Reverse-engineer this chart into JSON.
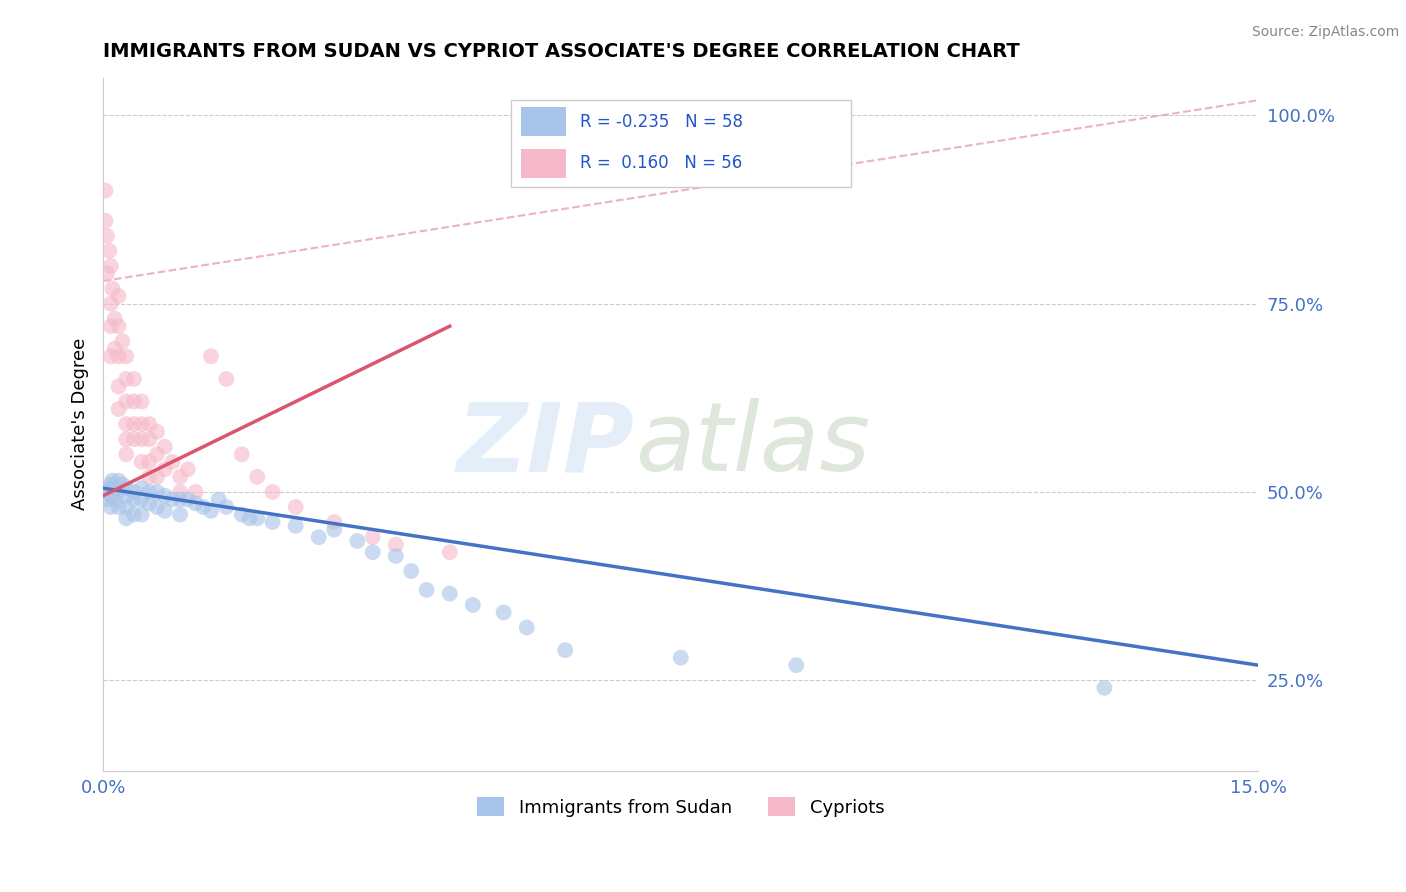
{
  "title": "IMMIGRANTS FROM SUDAN VS CYPRIOT ASSOCIATE'S DEGREE CORRELATION CHART",
  "source_text": "Source: ZipAtlas.com",
  "ylabel": "Associate's Degree",
  "xlim": [
    0.0,
    0.15
  ],
  "ylim": [
    0.13,
    1.05
  ],
  "ytick_values": [
    0.25,
    0.5,
    0.75,
    1.0
  ],
  "xtick_values": [
    0.0,
    0.15
  ],
  "blue_color": "#a8c4e8",
  "pink_color": "#f5b8c8",
  "blue_line_color": "#4472c4",
  "pink_line_color": "#d9566e",
  "diag_color": "#d9a0a8",
  "legend_R_blue": "R = -0.235",
  "legend_N_blue": "N = 58",
  "legend_R_pink": "R =  0.160",
  "legend_N_pink": "N = 56",
  "blue_scatter_x": [
    0.0005,
    0.0005,
    0.0008,
    0.001,
    0.001,
    0.001,
    0.0012,
    0.0015,
    0.0015,
    0.002,
    0.002,
    0.002,
    0.0025,
    0.003,
    0.003,
    0.003,
    0.003,
    0.004,
    0.004,
    0.004,
    0.005,
    0.005,
    0.005,
    0.006,
    0.006,
    0.007,
    0.007,
    0.008,
    0.008,
    0.009,
    0.01,
    0.01,
    0.011,
    0.012,
    0.013,
    0.014,
    0.015,
    0.016,
    0.018,
    0.019,
    0.02,
    0.022,
    0.025,
    0.028,
    0.03,
    0.033,
    0.035,
    0.038,
    0.04,
    0.042,
    0.045,
    0.048,
    0.052,
    0.055,
    0.06,
    0.075,
    0.09,
    0.13
  ],
  "blue_scatter_y": [
    0.5,
    0.49,
    0.505,
    0.51,
    0.495,
    0.48,
    0.515,
    0.505,
    0.49,
    0.515,
    0.5,
    0.48,
    0.51,
    0.505,
    0.495,
    0.48,
    0.465,
    0.5,
    0.49,
    0.47,
    0.505,
    0.49,
    0.47,
    0.5,
    0.485,
    0.5,
    0.48,
    0.495,
    0.475,
    0.49,
    0.49,
    0.47,
    0.49,
    0.485,
    0.48,
    0.475,
    0.49,
    0.48,
    0.47,
    0.465,
    0.465,
    0.46,
    0.455,
    0.44,
    0.45,
    0.435,
    0.42,
    0.415,
    0.395,
    0.37,
    0.365,
    0.35,
    0.34,
    0.32,
    0.29,
    0.28,
    0.27,
    0.24
  ],
  "pink_scatter_x": [
    0.0003,
    0.0003,
    0.0005,
    0.0005,
    0.0008,
    0.001,
    0.001,
    0.001,
    0.001,
    0.0012,
    0.0015,
    0.0015,
    0.002,
    0.002,
    0.002,
    0.002,
    0.002,
    0.0025,
    0.003,
    0.003,
    0.003,
    0.003,
    0.003,
    0.003,
    0.004,
    0.004,
    0.004,
    0.004,
    0.005,
    0.005,
    0.005,
    0.005,
    0.006,
    0.006,
    0.006,
    0.006,
    0.007,
    0.007,
    0.007,
    0.008,
    0.008,
    0.009,
    0.01,
    0.01,
    0.011,
    0.012,
    0.014,
    0.016,
    0.018,
    0.02,
    0.022,
    0.025,
    0.03,
    0.035,
    0.038,
    0.045
  ],
  "pink_scatter_y": [
    0.9,
    0.86,
    0.84,
    0.79,
    0.82,
    0.8,
    0.75,
    0.72,
    0.68,
    0.77,
    0.73,
    0.69,
    0.76,
    0.72,
    0.68,
    0.64,
    0.61,
    0.7,
    0.68,
    0.65,
    0.62,
    0.59,
    0.57,
    0.55,
    0.65,
    0.62,
    0.59,
    0.57,
    0.62,
    0.59,
    0.57,
    0.54,
    0.59,
    0.57,
    0.54,
    0.52,
    0.58,
    0.55,
    0.52,
    0.56,
    0.53,
    0.54,
    0.52,
    0.5,
    0.53,
    0.5,
    0.68,
    0.65,
    0.55,
    0.52,
    0.5,
    0.48,
    0.46,
    0.44,
    0.43,
    0.42
  ]
}
